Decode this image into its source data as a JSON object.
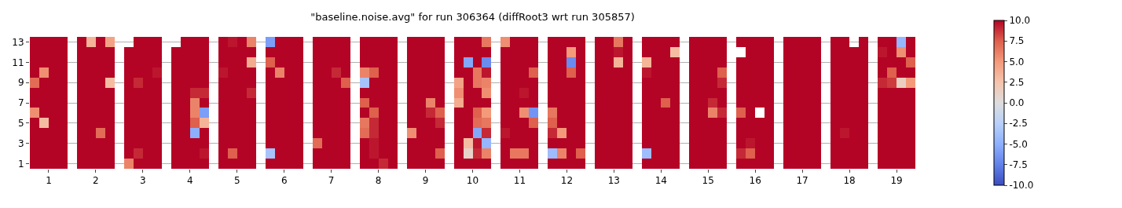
{
  "chart_data": {
    "type": "heatmap",
    "title": "\"baseline.noise.avg\" for run 306364 (diffRoot3 wrt run 305857)",
    "x": [
      0.7,
      0.9,
      1.1,
      1.3,
      1.5,
      1.7,
      1.9,
      2.1,
      2.3,
      2.5,
      2.7,
      2.9,
      3.1,
      3.3,
      3.5,
      3.7,
      3.9,
      4.1,
      4.3,
      4.5,
      4.7,
      4.9,
      5.1,
      5.3,
      5.5,
      5.7,
      5.9,
      6.1,
      6.3,
      6.5,
      6.7,
      6.9,
      7.1,
      7.3,
      7.5,
      7.7,
      7.9,
      8.1,
      8.3,
      8.5,
      8.7,
      8.9,
      9.1,
      9.3,
      9.5,
      9.7,
      9.9,
      10.1,
      10.3,
      10.5,
      10.7,
      10.9,
      11.1,
      11.3,
      11.5,
      11.7,
      11.9,
      12.1,
      12.3,
      12.5,
      12.7,
      12.9,
      13.1,
      13.3,
      13.5,
      13.7,
      13.9,
      14.1,
      14.3,
      14.5,
      14.7,
      14.9,
      15.1,
      15.3,
      15.5,
      15.7,
      15.9,
      16.1,
      16.3,
      16.5,
      16.7,
      16.9,
      17.1,
      17.3,
      17.5,
      17.7,
      17.9,
      18.1,
      18.3,
      18.5,
      18.7,
      18.9,
      19.1,
      19.3
    ],
    "xlim": [
      0.6,
      19.4
    ],
    "xticks": [
      1,
      2,
      3,
      4,
      5,
      6,
      7,
      8,
      9,
      10,
      11,
      12,
      13,
      14,
      15,
      16,
      17,
      18,
      19
    ],
    "y_categories": [
      "13",
      null,
      "11",
      null,
      "9",
      null,
      "7",
      null,
      "5",
      null,
      "3",
      null,
      "1"
    ],
    "cells": [
      [
        10,
        10,
        10,
        10,
        null,
        10,
        3.5,
        10,
        4.5,
        null,
        null,
        10,
        10,
        10,
        null,
        null,
        10,
        10,
        10,
        null,
        10,
        9.5,
        10,
        6,
        null,
        -6,
        10,
        10,
        10,
        null,
        10,
        10,
        10,
        10,
        null,
        10,
        10,
        10,
        10,
        null,
        10,
        10,
        10,
        10,
        null,
        10,
        10,
        10,
        6.5,
        null,
        5.5,
        10,
        10,
        10,
        null,
        10,
        10,
        10,
        10,
        null,
        10,
        10,
        6.5,
        10,
        null,
        10,
        10,
        10,
        10,
        null,
        10,
        10,
        10,
        10,
        null,
        10,
        10,
        10,
        10,
        null,
        10,
        10,
        10,
        10,
        null,
        10,
        10,
        null,
        10,
        null,
        10,
        10,
        -4.5,
        10
      ],
      [
        10,
        10,
        10,
        10,
        null,
        10,
        10,
        10,
        10,
        null,
        10,
        10,
        10,
        10,
        null,
        10,
        10,
        10,
        10,
        null,
        10,
        10,
        10,
        10,
        null,
        10,
        10,
        10,
        10,
        null,
        10,
        10,
        10,
        10,
        null,
        10,
        10,
        10,
        10,
        null,
        10,
        10,
        10,
        10,
        null,
        10,
        10,
        10,
        10,
        null,
        10,
        10,
        10,
        10,
        null,
        10,
        10,
        5,
        10,
        null,
        10,
        10,
        9.5,
        10,
        null,
        10,
        10,
        10,
        3,
        null,
        10,
        10,
        10,
        10,
        null,
        null,
        10,
        10,
        10,
        null,
        10,
        10,
        10,
        10,
        null,
        10,
        10,
        10,
        10,
        null,
        9.5,
        10,
        5.5,
        10
      ],
      [
        10,
        10,
        10,
        10,
        null,
        10,
        10,
        10,
        10,
        null,
        10,
        10,
        10,
        10,
        null,
        10,
        10,
        10,
        10,
        null,
        10,
        10,
        10,
        4,
        null,
        7.5,
        10,
        10,
        10,
        null,
        10,
        10,
        10,
        10,
        null,
        10,
        10,
        10,
        10,
        null,
        10,
        10,
        10,
        10,
        null,
        10,
        -5.5,
        10,
        -7,
        null,
        10,
        10,
        10,
        10,
        null,
        10,
        10,
        -7,
        10,
        null,
        10,
        10,
        3.5,
        10,
        null,
        3.5,
        10,
        10,
        10,
        null,
        10,
        10,
        10,
        10,
        null,
        10,
        10,
        10,
        10,
        null,
        10,
        10,
        10,
        10,
        null,
        10,
        10,
        10,
        10,
        null,
        10,
        10,
        10,
        7.5
      ],
      [
        10,
        5.5,
        10,
        10,
        null,
        10,
        10,
        10,
        10,
        null,
        10,
        10,
        10,
        9.5,
        null,
        10,
        10,
        10,
        10,
        null,
        9.5,
        10,
        10,
        10,
        null,
        10,
        6,
        10,
        10,
        null,
        10,
        10,
        9,
        10,
        null,
        6,
        7.5,
        10,
        10,
        null,
        10,
        10,
        10,
        10,
        null,
        10,
        10,
        6.5,
        9.5,
        null,
        10,
        10,
        10,
        7.5,
        null,
        10,
        10,
        7.5,
        10,
        null,
        10,
        10,
        10,
        10,
        null,
        9.5,
        10,
        10,
        10,
        null,
        10,
        10,
        10,
        7.5,
        null,
        10,
        10,
        10,
        10,
        null,
        10,
        10,
        10,
        10,
        null,
        10,
        10,
        10,
        10,
        null,
        10,
        7.5,
        10,
        10
      ],
      [
        7,
        10,
        10,
        10,
        null,
        10,
        10,
        10,
        3,
        null,
        10,
        9,
        10,
        10,
        null,
        10,
        10,
        10,
        10,
        null,
        10,
        10,
        10,
        10,
        null,
        10,
        10,
        10,
        10,
        null,
        10,
        10,
        10,
        7.5,
        null,
        -3.5,
        10,
        10,
        10,
        null,
        10,
        10,
        10,
        10,
        null,
        4.5,
        10,
        6.5,
        6,
        null,
        10,
        10,
        10,
        10,
        null,
        10,
        10,
        10,
        10,
        null,
        10,
        10,
        10,
        10,
        null,
        10,
        10,
        10,
        10,
        null,
        10,
        10,
        10,
        9,
        null,
        10,
        10,
        10,
        10,
        null,
        10,
        10,
        10,
        10,
        null,
        10,
        10,
        10,
        10,
        null,
        9,
        8.5,
        1.5,
        5
      ],
      [
        10,
        10,
        10,
        10,
        null,
        10,
        10,
        10,
        10,
        null,
        10,
        10,
        10,
        10,
        null,
        10,
        10,
        9,
        9,
        null,
        10,
        10,
        10,
        9,
        null,
        10,
        10,
        10,
        10,
        null,
        10,
        10,
        10,
        10,
        null,
        10,
        10,
        10,
        10,
        null,
        10,
        10,
        10,
        10,
        null,
        5.5,
        10,
        10,
        5.5,
        null,
        10,
        10,
        9.5,
        10,
        null,
        10,
        10,
        10,
        10,
        null,
        10,
        10,
        10,
        10,
        null,
        10,
        10,
        10,
        10,
        null,
        10,
        10,
        10,
        10,
        null,
        10,
        10,
        10,
        10,
        null,
        10,
        10,
        10,
        10,
        null,
        10,
        10,
        10,
        10,
        null,
        10,
        10,
        10,
        10
      ],
      [
        10,
        10,
        10,
        10,
        null,
        10,
        10,
        10,
        10,
        null,
        10,
        10,
        10,
        10,
        null,
        10,
        10,
        6,
        10,
        null,
        10,
        10,
        10,
        10,
        null,
        10,
        10,
        10,
        10,
        null,
        10,
        10,
        10,
        10,
        null,
        7.5,
        10,
        10,
        10,
        null,
        10,
        10,
        6,
        10,
        null,
        4,
        10,
        10,
        10,
        null,
        10,
        10,
        10,
        10,
        null,
        10,
        10,
        10,
        10,
        null,
        10,
        10,
        10,
        10,
        null,
        10,
        10,
        7.5,
        10,
        null,
        10,
        10,
        9,
        10,
        null,
        10,
        10,
        10,
        10,
        null,
        10,
        10,
        10,
        10,
        null,
        10,
        10,
        10,
        10,
        null,
        10,
        10,
        10,
        10
      ],
      [
        5.5,
        10,
        10,
        10,
        null,
        10,
        10,
        10,
        10,
        null,
        10,
        10,
        10,
        10,
        null,
        10,
        10,
        6,
        -6,
        null,
        10,
        10,
        10,
        10,
        null,
        10,
        10,
        10,
        10,
        null,
        10,
        10,
        10,
        10,
        null,
        10,
        7.5,
        10,
        10,
        null,
        10,
        10,
        9,
        7.5,
        null,
        10,
        10,
        7.5,
        5,
        null,
        10,
        10,
        5.5,
        -6.5,
        null,
        6.5,
        10,
        10,
        10,
        null,
        10,
        10,
        10,
        10,
        null,
        10,
        10,
        10,
        10,
        null,
        10,
        10,
        6,
        9,
        null,
        7.5,
        10,
        null,
        10,
        null,
        10,
        10,
        10,
        10,
        null,
        10,
        10,
        10,
        10,
        null,
        10,
        10,
        10,
        10
      ],
      [
        10,
        3,
        10,
        10,
        null,
        10,
        10,
        10,
        10,
        null,
        10,
        10,
        10,
        10,
        null,
        10,
        10,
        7.5,
        3.5,
        null,
        10,
        10,
        10,
        10,
        null,
        10,
        10,
        10,
        10,
        null,
        10,
        10,
        10,
        10,
        null,
        6.5,
        9,
        10,
        10,
        null,
        10,
        10,
        10,
        9,
        null,
        10,
        10,
        7,
        6.5,
        null,
        10,
        10,
        10,
        7.5,
        null,
        7.5,
        10,
        10,
        10,
        null,
        10,
        10,
        10,
        10,
        null,
        10,
        10,
        10,
        10,
        null,
        10,
        10,
        10,
        10,
        null,
        10,
        10,
        10,
        10,
        null,
        10,
        10,
        10,
        10,
        null,
        10,
        10,
        10,
        10,
        null,
        10,
        10,
        10,
        10
      ],
      [
        10,
        10,
        10,
        10,
        null,
        10,
        10,
        7,
        10,
        null,
        10,
        10,
        10,
        10,
        null,
        10,
        10,
        -5,
        10,
        null,
        10,
        10,
        10,
        10,
        null,
        10,
        10,
        10,
        10,
        null,
        10,
        10,
        10,
        10,
        null,
        7,
        9,
        10,
        10,
        null,
        5.5,
        10,
        10,
        10,
        null,
        10,
        10,
        -5.5,
        9,
        null,
        9.5,
        10,
        10,
        10,
        null,
        9,
        5,
        10,
        10,
        null,
        10,
        10,
        10,
        10,
        null,
        10,
        10,
        10,
        10,
        null,
        10,
        10,
        10,
        10,
        null,
        10,
        10,
        10,
        10,
        null,
        10,
        10,
        10,
        10,
        null,
        10,
        9.5,
        10,
        10,
        null,
        10,
        10,
        10,
        10
      ],
      [
        10,
        10,
        10,
        10,
        null,
        10,
        10,
        10,
        10,
        null,
        10,
        10,
        10,
        10,
        null,
        10,
        10,
        10,
        10,
        null,
        10,
        10,
        10,
        10,
        null,
        10,
        10,
        10,
        10,
        null,
        7,
        10,
        10,
        10,
        null,
        10,
        9.5,
        10,
        10,
        null,
        10,
        10,
        10,
        10,
        null,
        10,
        3,
        9.5,
        -4.5,
        null,
        10,
        10,
        10,
        10,
        null,
        10,
        10,
        10,
        10,
        null,
        10,
        10,
        10,
        10,
        null,
        10,
        10,
        10,
        10,
        null,
        10,
        10,
        10,
        10,
        null,
        10,
        9.5,
        10,
        10,
        null,
        10,
        10,
        10,
        10,
        null,
        10,
        10,
        10,
        10,
        null,
        10,
        10,
        10,
        10
      ],
      [
        10,
        10,
        10,
        10,
        null,
        10,
        10,
        10,
        10,
        null,
        10,
        9,
        10,
        10,
        null,
        10,
        10,
        10,
        9.5,
        null,
        10,
        7.5,
        10,
        10,
        null,
        -3.5,
        10,
        10,
        10,
        null,
        10,
        10,
        10,
        10,
        null,
        10,
        9.5,
        10,
        10,
        null,
        10,
        10,
        10,
        7.5,
        null,
        10,
        1,
        9,
        6,
        null,
        10,
        6.5,
        6.5,
        10,
        null,
        -4,
        6,
        10,
        7.5,
        null,
        10,
        10,
        10,
        10,
        null,
        -4,
        10,
        10,
        10,
        null,
        10,
        10,
        10,
        10,
        null,
        9,
        7.5,
        10,
        10,
        null,
        10,
        10,
        10,
        10,
        null,
        10,
        10,
        10,
        10,
        null,
        10,
        10,
        10,
        10
      ],
      [
        10,
        10,
        10,
        10,
        null,
        10,
        10,
        10,
        10,
        null,
        6,
        10,
        10,
        10,
        null,
        10,
        10,
        10,
        10,
        null,
        10,
        10,
        10,
        10,
        null,
        10,
        10,
        10,
        10,
        null,
        10,
        10,
        10,
        10,
        null,
        10,
        10,
        9,
        10,
        null,
        10,
        10,
        10,
        10,
        null,
        10,
        10,
        10,
        10,
        null,
        10,
        10,
        10,
        10,
        null,
        10,
        10,
        10,
        10,
        null,
        10,
        10,
        10,
        10,
        null,
        10,
        10,
        10,
        10,
        null,
        10,
        10,
        10,
        10,
        null,
        10,
        10,
        10,
        10,
        null,
        10,
        10,
        10,
        10,
        null,
        10,
        10,
        10,
        10,
        null,
        10,
        10,
        10,
        10
      ]
    ],
    "clim": [
      -10,
      10
    ],
    "cticks": [
      {
        "value": -10,
        "label": "-10.0"
      },
      {
        "value": -7.5,
        "label": "-7.5"
      },
      {
        "value": -5,
        "label": "-5.0"
      },
      {
        "value": -2.5,
        "label": "-2.5"
      },
      {
        "value": 0,
        "label": "0.0"
      },
      {
        "value": 2.5,
        "label": "2.5"
      },
      {
        "value": 5,
        "label": "5.0"
      },
      {
        "value": 7.5,
        "label": "7.5"
      },
      {
        "value": 10,
        "label": "10.0"
      }
    ],
    "grid": "y"
  }
}
